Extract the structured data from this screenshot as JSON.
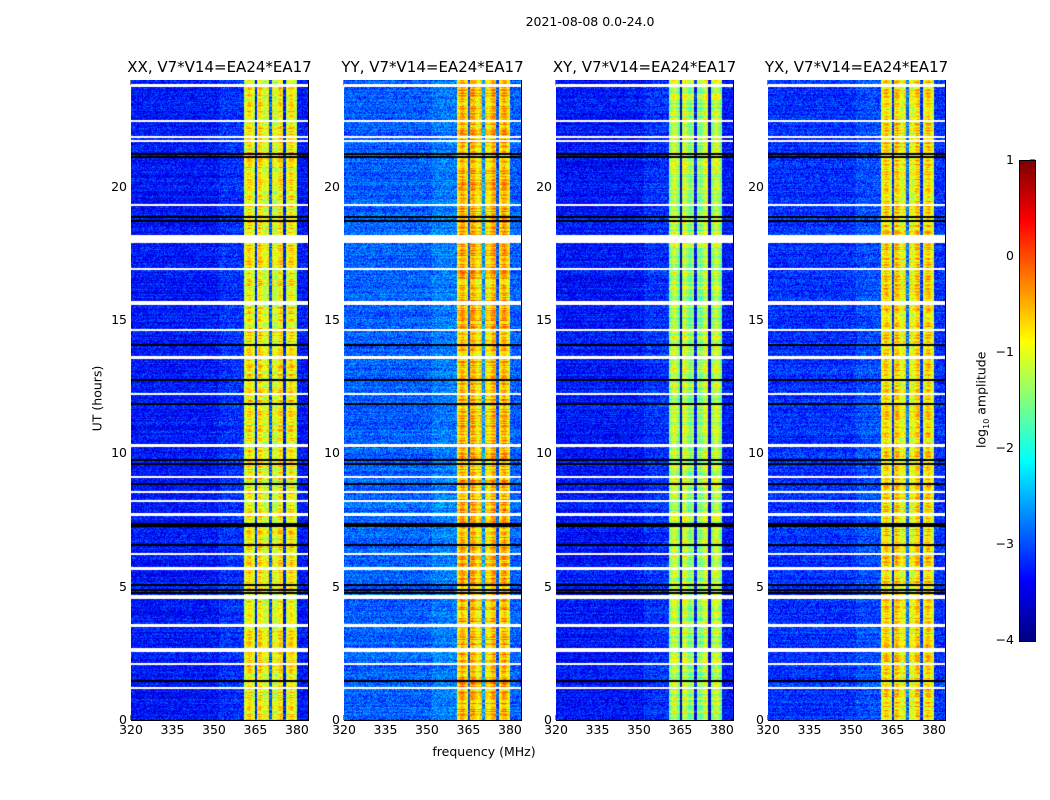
{
  "chart_data": {
    "type": "heatmap",
    "title": "2021-08-08 0.0-24.0",
    "xlabel": "frequency (MHz)",
    "ylabel": "UT (hours)",
    "xlim": [
      320,
      384
    ],
    "ylim": [
      0,
      24
    ],
    "xticks": [
      "320",
      "335",
      "350",
      "365",
      "380"
    ],
    "xtick_values": [
      320,
      335,
      350,
      365,
      380
    ],
    "yticks": [
      "0",
      "5",
      "10",
      "15",
      "20"
    ],
    "ytick_values": [
      0,
      5,
      10,
      15,
      20
    ],
    "colormap": "jet",
    "colorbar": {
      "label_main": "log",
      "label_sub": "10",
      "label_rest": " amplitude",
      "range": [
        -4,
        1
      ],
      "ticks": [
        "1",
        "0",
        "−1",
        "−2",
        "−3",
        "−4"
      ],
      "tick_values": [
        1,
        0,
        -1,
        -2,
        -3,
        -4
      ]
    },
    "bright_band_mhz": [
      360.5,
      380
    ],
    "subband_edges_mhz": [
      365,
      370.3,
      375.3
    ],
    "flagged_rows_hours": [
      [
        23.75,
        23.85
      ],
      [
        22.45,
        22.5
      ],
      [
        21.85,
        21.9
      ],
      [
        21.7,
        21.75
      ],
      [
        19.3,
        19.35
      ],
      [
        17.9,
        18.2
      ],
      [
        16.9,
        16.95
      ],
      [
        15.55,
        15.7
      ],
      [
        14.6,
        14.65
      ],
      [
        13.55,
        13.65
      ],
      [
        12.2,
        12.25
      ],
      [
        10.25,
        10.35
      ],
      [
        9.1,
        9.15
      ],
      [
        8.55,
        8.6
      ],
      [
        8.2,
        8.25
      ],
      [
        7.65,
        7.75
      ],
      [
        6.2,
        6.25
      ],
      [
        5.65,
        5.75
      ],
      [
        4.55,
        4.7
      ],
      [
        3.5,
        3.6
      ],
      [
        2.55,
        2.7
      ],
      [
        2.1,
        2.15
      ],
      [
        1.2,
        1.25
      ]
    ],
    "black_rows_hours": [
      21.25,
      21.15,
      18.9,
      18.75,
      14.1,
      12.8,
      11.9,
      9.8,
      9.65,
      8.9,
      7.4,
      7.3,
      6.6,
      5.1,
      4.9,
      4.8,
      1.5
    ],
    "panels": [
      {
        "name": "xx",
        "title": "XX, V7*V14=EA24*EA17",
        "background_level": -3.3,
        "band_level": -0.9
      },
      {
        "name": "yy",
        "title": "YY, V7*V14=EA24*EA17",
        "background_level": -2.9,
        "band_level": -0.6
      },
      {
        "name": "xy",
        "title": "XY, V7*V14=EA24*EA17",
        "background_level": -3.3,
        "band_level": -1.3
      },
      {
        "name": "yx",
        "title": "YX, V7*V14=EA24*EA17",
        "background_level": -3.15,
        "band_level": -0.8
      }
    ]
  }
}
